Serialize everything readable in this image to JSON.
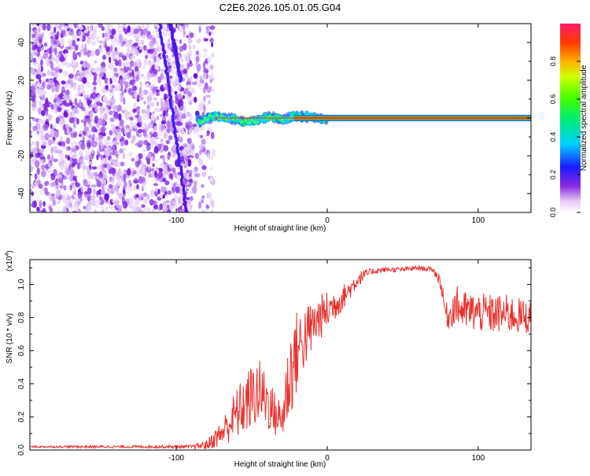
{
  "chart_data": [
    {
      "type": "heatmap",
      "title": "C2E6.2026.105.01.05.G04",
      "xlabel": "Height of straight line (km)",
      "ylabel": "Frequency (Hz)",
      "xlim": [
        -197,
        135
      ],
      "ylim": [
        -50,
        50
      ],
      "xticks": [
        -100,
        0,
        100
      ],
      "yticks": [
        -40,
        -20,
        0,
        20,
        40
      ],
      "colorbar": {
        "label": "Normalized spectral amplitude",
        "ticks": [
          "0.0",
          "0.2",
          "0.4",
          "0.6",
          "0.8"
        ],
        "range": [
          0,
          1
        ]
      },
      "regions": [
        {
          "name": "noise",
          "x_range": [
            -197,
            -80
          ],
          "freq_range": [
            -50,
            50
          ],
          "amplitude": "low"
        },
        {
          "name": "oblique-streak",
          "x_range": [
            -110,
            -95
          ],
          "freq_range": [
            -50,
            50
          ],
          "amplitude": "low"
        },
        {
          "name": "signal-trace",
          "x_range": [
            -85,
            135
          ],
          "center_frequency": 0,
          "amplitude": "high"
        }
      ],
      "signal_profile": [
        {
          "x": -85,
          "f": -2
        },
        {
          "x": -75,
          "f": 1
        },
        {
          "x": -65,
          "f": 0
        },
        {
          "x": -55,
          "f": -2
        },
        {
          "x": -45,
          "f": -1
        },
        {
          "x": -38,
          "f": 1
        },
        {
          "x": -30,
          "f": -1
        },
        {
          "x": -22,
          "f": 1
        },
        {
          "x": -10,
          "f": 0.5
        },
        {
          "x": 0,
          "f": -1
        },
        {
          "x": 5,
          "f": 0
        },
        {
          "x": 135,
          "f": 0
        }
      ]
    },
    {
      "type": "line",
      "xlabel": "Height of straight line (km)",
      "ylabel": "SNR (10 * v/v)",
      "yscale_label": "(x10",
      "yscale_exponent": "4",
      "xlim": [
        -197,
        135
      ],
      "ylim": [
        0,
        1.15
      ],
      "xticks": [
        -100,
        0,
        100
      ],
      "yticks": [
        "0.0",
        "0.2",
        "0.4",
        "0.6",
        "0.8",
        "1.0"
      ],
      "series": [
        {
          "name": "SNR",
          "color": "#e8302c",
          "x": [
            -197,
            -160,
            -120,
            -90,
            -80,
            -70,
            -60,
            -50,
            -45,
            -40,
            -35,
            -30,
            -25,
            -20,
            -15,
            -10,
            -5,
            0,
            5,
            10,
            15,
            20,
            25,
            30,
            40,
            50,
            60,
            70,
            75,
            78,
            80,
            85,
            90,
            100,
            110,
            120,
            135
          ],
          "values": [
            0.02,
            0.02,
            0.02,
            0.02,
            0.03,
            0.1,
            0.22,
            0.32,
            0.35,
            0.3,
            0.22,
            0.18,
            0.45,
            0.6,
            0.68,
            0.74,
            0.8,
            0.84,
            0.88,
            0.92,
            0.97,
            1.03,
            1.06,
            1.08,
            1.09,
            1.09,
            1.1,
            1.09,
            1.02,
            0.85,
            0.8,
            0.88,
            0.84,
            0.83,
            0.82,
            0.82,
            0.8
          ],
          "noise": [
            0.005,
            0.008,
            0.008,
            0.01,
            0.03,
            0.08,
            0.16,
            0.2,
            0.2,
            0.18,
            0.14,
            0.12,
            0.3,
            0.25,
            0.2,
            0.16,
            0.14,
            0.12,
            0.1,
            0.08,
            0.06,
            0.05,
            0.03,
            0.02,
            0.015,
            0.015,
            0.015,
            0.015,
            0.05,
            0.06,
            0.08,
            0.12,
            0.12,
            0.12,
            0.12,
            0.12,
            0.1
          ]
        }
      ]
    }
  ]
}
